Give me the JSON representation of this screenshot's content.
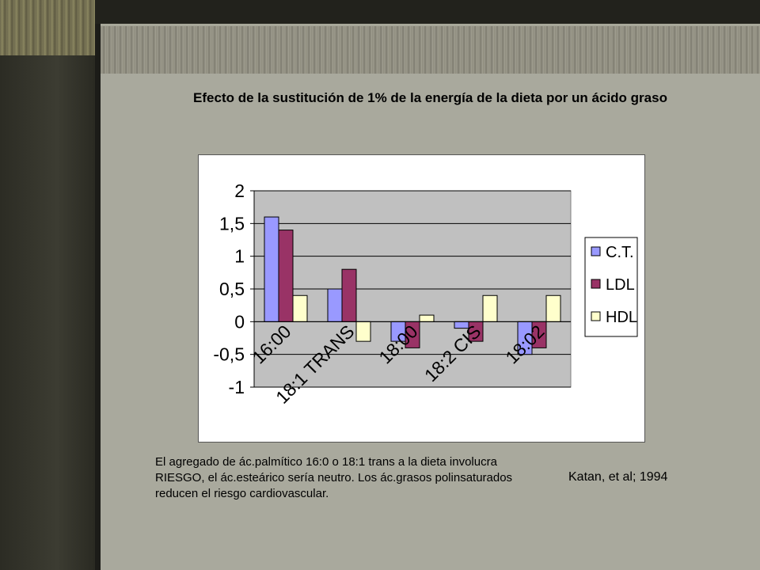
{
  "slide": {
    "title": "Efecto de la sustitución de 1% de la energía de la dieta por un ácido graso",
    "caption": "El agregado de ác.palmítico 16:0 o 18:1 trans a la dieta involucra RIESGO, el ác.esteárico sería neutro. Los ác.grasos polinsaturados reducen el riesgo cardiovascular.",
    "citation": "Katan, et al; 1994"
  },
  "chart_data": {
    "type": "bar",
    "categories": [
      "16:00",
      "18:1 TRANS",
      "18:00",
      "18:2 CIS",
      "18:02"
    ],
    "series": [
      {
        "name": "C.T.",
        "values": [
          1.6,
          0.5,
          -0.3,
          -0.1,
          -0.5
        ],
        "color": "#9999ff"
      },
      {
        "name": "LDL",
        "values": [
          1.4,
          0.8,
          -0.4,
          -0.3,
          -0.4
        ],
        "color": "#993366"
      },
      {
        "name": "HDL",
        "values": [
          0.4,
          -0.3,
          0.1,
          0.4,
          0.4
        ],
        "color": "#ffffcc"
      }
    ],
    "yticks": [
      "2",
      "1,5",
      "1",
      "0,5",
      "0",
      "-0,5",
      "-1"
    ],
    "ylim": [
      -1,
      2
    ],
    "grid": true,
    "legend_position": "right",
    "plot_background": "#c0c0c0"
  }
}
